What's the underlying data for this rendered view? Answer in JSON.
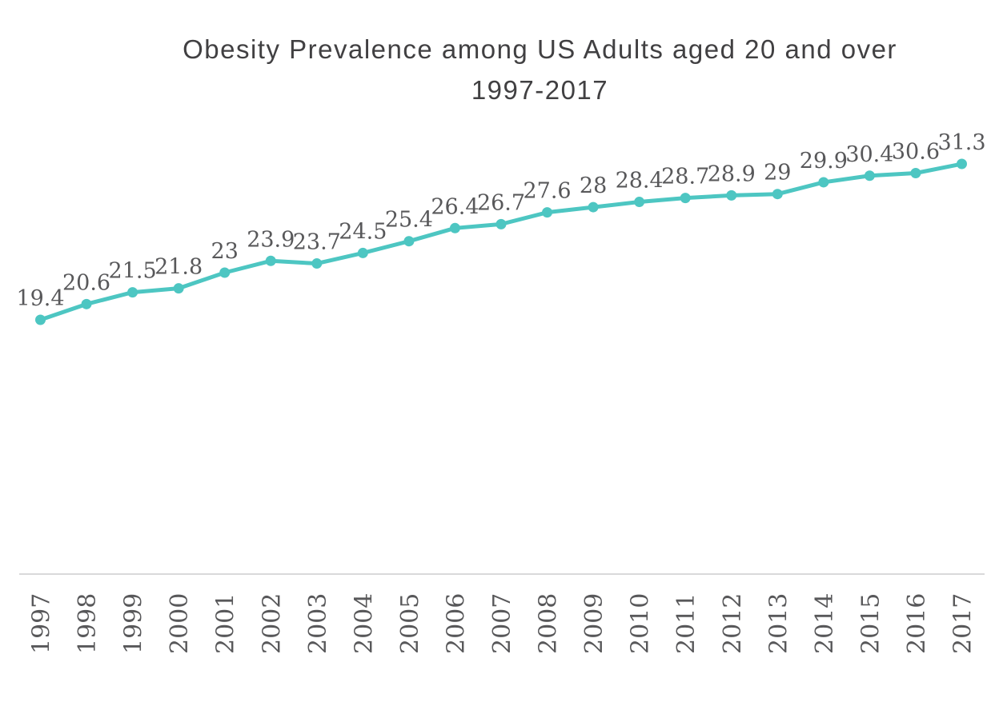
{
  "page": {
    "background_color": "#FFFFFF"
  },
  "chart": {
    "title": "Obesity Prevalence among US Adults aged 20 and over",
    "subtitle": "1997-2017"
  },
  "chart_data": {
    "type": "line",
    "title": "Obesity Prevalence among US Adults aged 20 and over 1997-2017",
    "categories": [
      "1997",
      "1998",
      "1999",
      "2000",
      "2001",
      "2002",
      "2003",
      "2004",
      "2005",
      "2006",
      "2007",
      "2008",
      "2009",
      "2010",
      "2011",
      "2012",
      "2013",
      "2014",
      "2015",
      "2016",
      "2017"
    ],
    "values": [
      19.4,
      20.6,
      21.5,
      21.8,
      23,
      23.9,
      23.7,
      24.5,
      25.4,
      26.4,
      26.7,
      27.6,
      28,
      28.4,
      28.7,
      28.9,
      29,
      29.9,
      30.4,
      30.6,
      31.3
    ],
    "data_labels_text": [
      "19.4",
      "20.6",
      "21.5",
      "21.8",
      "23",
      "23.9",
      "23.7",
      "24.5",
      "25.4",
      "26.4",
      "26.7",
      "27.6",
      "28",
      "28.4",
      "28.7",
      "28.9",
      "29",
      "29.9",
      "30.4",
      "30.6",
      "31.3"
    ],
    "xlabel": "",
    "ylabel": "",
    "legend": "none",
    "grid": false,
    "y_axis_visible": false,
    "data_labels_visible": true,
    "x_tick_rotation_deg": -90,
    "marker": "circle",
    "colors": {
      "line": "#4DC6C2",
      "marker": "#4DC6C2",
      "data_label": "#58585A",
      "tick_label": "#58585A",
      "title": "#414042",
      "axis_line": "#D9D9DA"
    }
  }
}
